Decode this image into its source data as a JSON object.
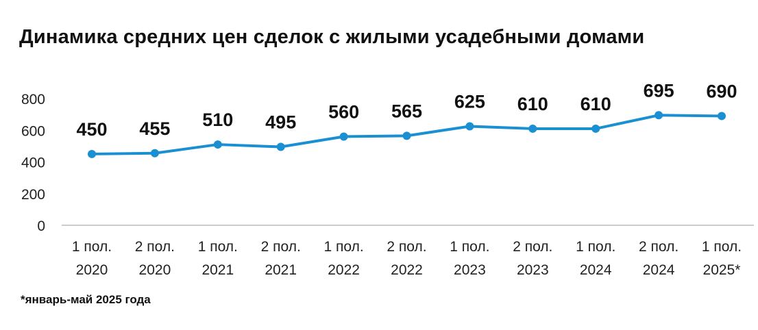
{
  "chart_data": {
    "type": "line",
    "title": "Динамика средних цен сделок с жилыми усадебными домами",
    "categories": [
      [
        "1 пол.",
        "2020"
      ],
      [
        "2 пол.",
        "2020"
      ],
      [
        "1 пол.",
        "2021"
      ],
      [
        "2 пол.",
        "2021"
      ],
      [
        "1 пол.",
        "2022"
      ],
      [
        "2 пол.",
        "2022"
      ],
      [
        "1 пол.",
        "2023"
      ],
      [
        "2 пол.",
        "2023"
      ],
      [
        "1 пол.",
        "2024"
      ],
      [
        "2 пол.",
        "2024"
      ],
      [
        "1 пол.",
        "2025*"
      ]
    ],
    "values": [
      450,
      455,
      510,
      495,
      560,
      565,
      625,
      610,
      610,
      695,
      690
    ],
    "yticks": [
      "0",
      "200",
      "400",
      "600",
      "800"
    ],
    "ylim": [
      0,
      800
    ],
    "grid": false,
    "color": "#1a8fd1",
    "xlabel": "",
    "ylabel": ""
  },
  "footnote": "*январь-май 2025 года"
}
